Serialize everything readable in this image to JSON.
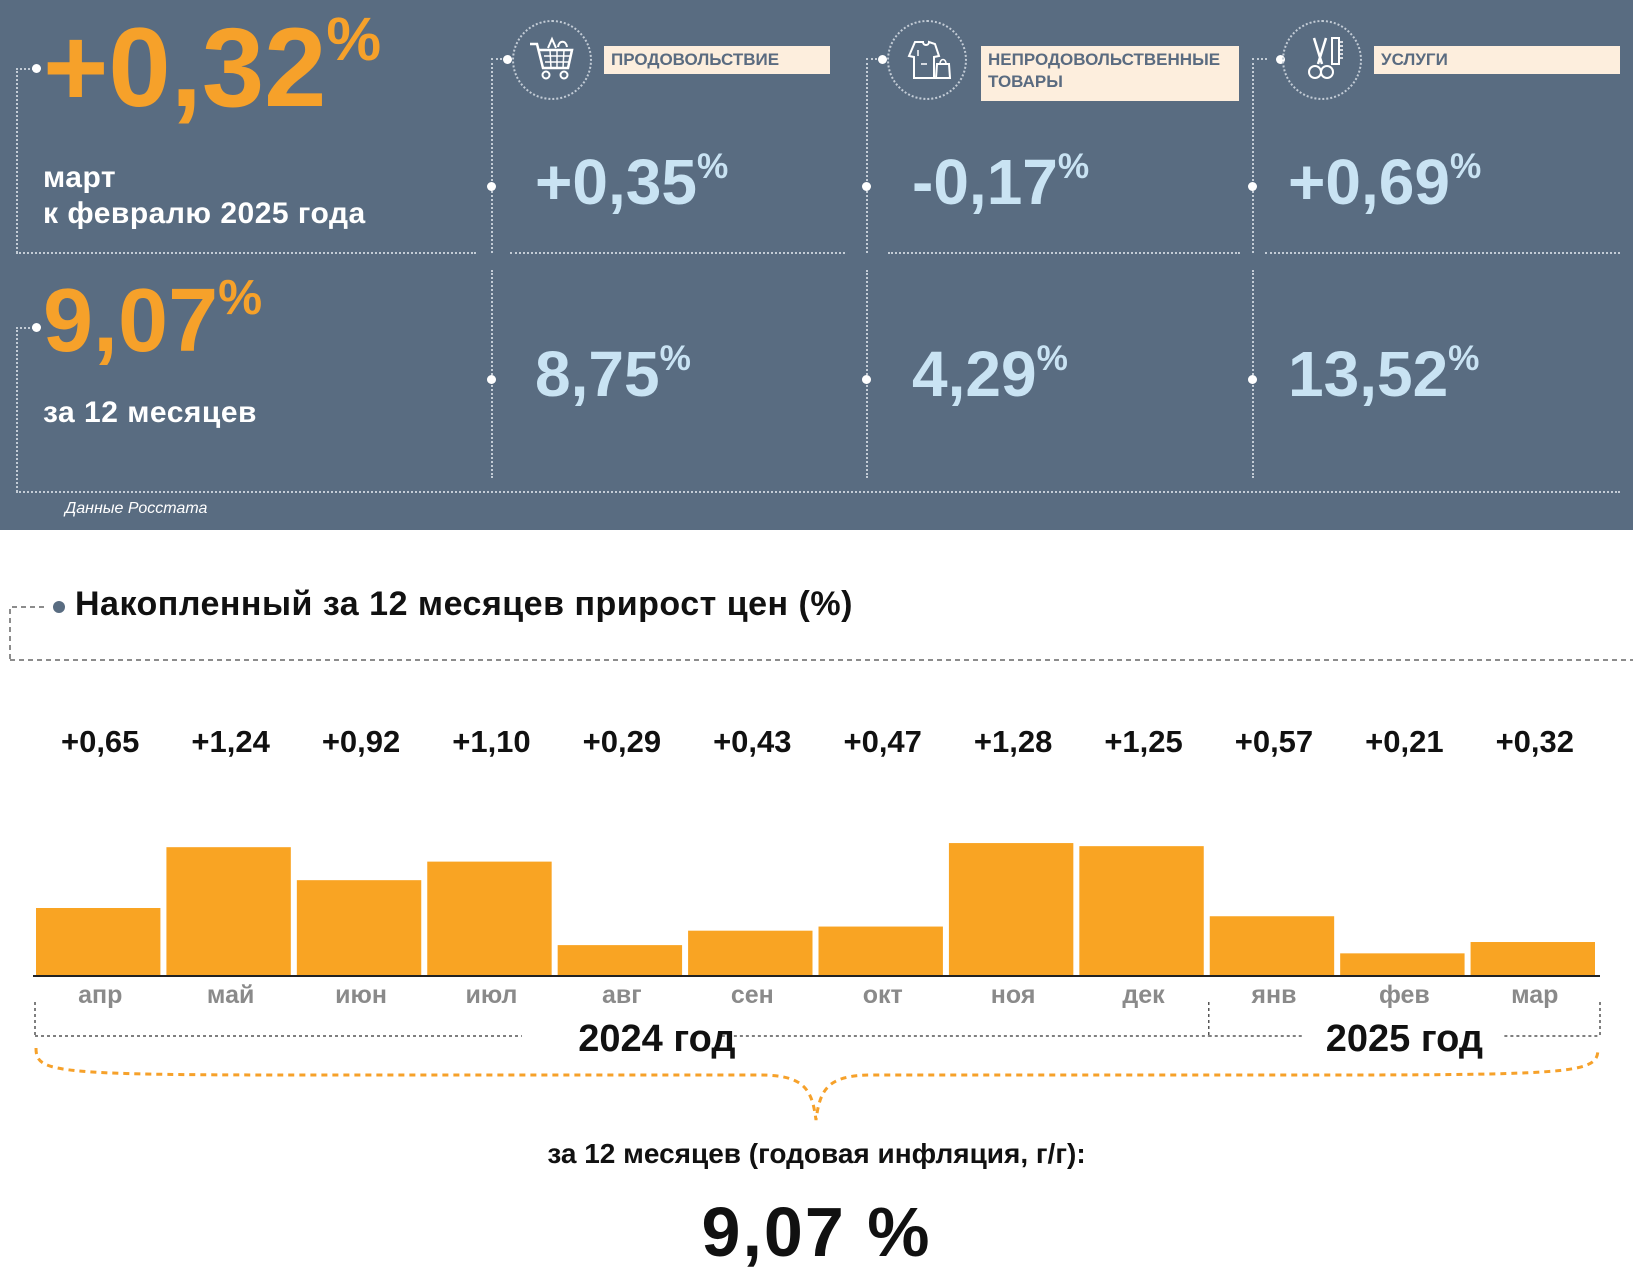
{
  "monthly": {
    "value": "+0,32",
    "percent_sign": "%",
    "caption_line1": "март",
    "caption_line2": "к февралю 2025 года"
  },
  "annual": {
    "value": "9,07",
    "percent_sign": "%",
    "caption": "за 12 месяцев"
  },
  "categories": [
    {
      "label": "ПРОДОВОЛЬСТВИЕ",
      "icon": "shopping-cart-icon",
      "monthly": "+0,35",
      "annual": "8,75"
    },
    {
      "label": "НЕПРОДОВОЛЬСТВЕННЫЕ ТОВАРЫ",
      "label_line1": "НЕПРОДОВОЛЬСТВЕННЫЕ",
      "label_line2": "ТОВАРЫ",
      "icon": "clothes-bag-icon",
      "monthly": "-0,17",
      "annual": "4,29"
    },
    {
      "label": "УСЛУГИ",
      "icon": "scissors-comb-icon",
      "monthly": "+0,69",
      "annual": "13,52"
    }
  ],
  "percent_sign": "%",
  "source_note": "Данные Росстата",
  "colors": {
    "panel_bg": "#596c81",
    "accent_orange": "#f6a12a",
    "light_blue": "#c9e3f3",
    "tag_bg": "#fdeedd",
    "bar": "#f9a423"
  },
  "chart_data": {
    "type": "bar",
    "title": "Накопленный за 12 месяцев прирост цен (%)",
    "categories": [
      "апр",
      "май",
      "июн",
      "июл",
      "авг",
      "сен",
      "окт",
      "ноя",
      "дек",
      "янв",
      "фев",
      "мар"
    ],
    "values": [
      0.65,
      1.24,
      0.92,
      1.1,
      0.29,
      0.43,
      0.47,
      1.28,
      1.25,
      0.57,
      0.21,
      0.32
    ],
    "value_labels": [
      "+0,65",
      "+1,24",
      "+0,92",
      "+1,10",
      "+0,29",
      "+0,43",
      "+0,47",
      "+1,28",
      "+1,25",
      "+0,57",
      "+0,21",
      "+0,32"
    ],
    "year_groups": [
      {
        "label": "2024 год",
        "count": 9
      },
      {
        "label": "2025 год",
        "count": 3
      }
    ],
    "ylim": [
      0,
      1.3
    ],
    "grid": false,
    "legend": "none"
  },
  "summary": {
    "label": "за 12 месяцев (годовая инфляция, г/г):",
    "value": "9,07 %"
  }
}
